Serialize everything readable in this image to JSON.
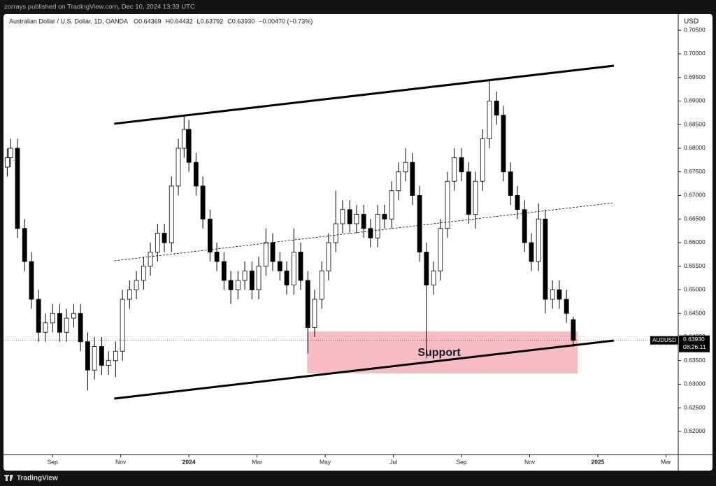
{
  "header": {
    "publisher": "zorrays published on TradingView.com, Dec 10, 2024 13:33 UTC"
  },
  "footer": {
    "brand": "TradingView"
  },
  "chart_data": {
    "type": "candlestick",
    "title": "Australian Dollar / U.S. Dollar, 1D, OANDA",
    "legend_values": [
      "O0.64369",
      "H0.64432",
      "L0.63792",
      "C0.63930",
      "−0.00470 (−0.73%)"
    ],
    "currency": "USD",
    "symbol": "AUDUSD",
    "last_price_label": "0.63930",
    "countdown": "08:26:11",
    "last_price": 0.6393,
    "annotation": "Support",
    "xlim": [
      -1.44,
      18.36
    ],
    "ylim": [
      0.61511,
      0.70844
    ],
    "xticks": [
      {
        "value": 0,
        "label": "Sep"
      },
      {
        "value": 2,
        "label": "Nov"
      },
      {
        "value": 4,
        "label": "2024"
      },
      {
        "value": 6,
        "label": "Mar"
      },
      {
        "value": 8,
        "label": "May"
      },
      {
        "value": 10,
        "label": "Jul"
      },
      {
        "value": 12,
        "label": "Sep"
      },
      {
        "value": 14,
        "label": "Nov"
      },
      {
        "value": 16,
        "label": "2025"
      },
      {
        "value": 18,
        "label": "Mar"
      }
    ],
    "yticks": [
      {
        "value": 0.62,
        "label": "0.62000"
      },
      {
        "value": 0.625,
        "label": "0.62500"
      },
      {
        "value": 0.63,
        "label": "0.63000"
      },
      {
        "value": 0.635,
        "label": "0.63500"
      },
      {
        "value": 0.64,
        "label": "0.64000"
      },
      {
        "value": 0.645,
        "label": "0.64500"
      },
      {
        "value": 0.65,
        "label": "0.65000"
      },
      {
        "value": 0.655,
        "label": "0.65500"
      },
      {
        "value": 0.66,
        "label": "0.66000"
      },
      {
        "value": 0.665,
        "label": "0.66500"
      },
      {
        "value": 0.67,
        "label": "0.67000"
      },
      {
        "value": 0.675,
        "label": "0.67500"
      },
      {
        "value": 0.68,
        "label": "0.68000"
      },
      {
        "value": 0.685,
        "label": "0.68500"
      },
      {
        "value": 0.69,
        "label": "0.69000"
      },
      {
        "value": 0.695,
        "label": "0.69500"
      },
      {
        "value": 0.7,
        "label": "0.70000"
      },
      {
        "value": 0.705,
        "label": "0.70500"
      }
    ],
    "up_color": "#ffffff",
    "down_color": "#000000",
    "wick_color": "#000000",
    "x": [
      -1.33,
      -1.23,
      -1.03,
      -0.82,
      -0.62,
      -0.41,
      -0.21,
      0,
      0.21,
      0.41,
      0.62,
      0.82,
      1.03,
      1.23,
      1.44,
      1.64,
      1.85,
      2.05,
      2.26,
      2.46,
      2.67,
      2.87,
      3.08,
      3.28,
      3.49,
      3.69,
      3.86,
      4.0,
      4.21,
      4.41,
      4.62,
      4.82,
      5.03,
      5.23,
      5.44,
      5.64,
      5.85,
      6.05,
      6.26,
      6.46,
      6.67,
      6.87,
      7.08,
      7.28,
      7.49,
      7.69,
      7.9,
      8.1,
      8.31,
      8.51,
      8.72,
      8.92,
      9.13,
      9.33,
      9.54,
      9.74,
      9.95,
      10.15,
      10.36,
      10.56,
      10.77,
      10.97,
      11.18,
      11.38,
      11.59,
      11.79,
      12.0,
      12.21,
      12.41,
      12.62,
      12.82,
      13.03,
      13.23,
      13.44,
      13.64,
      13.85,
      14.05,
      14.26,
      14.46,
      14.67,
      14.87,
      15.08,
      15.28
    ],
    "candles": [
      [
        0.676,
        0.68,
        0.674,
        0.678
      ],
      [
        0.678,
        0.682,
        0.676,
        0.68
      ],
      [
        0.68,
        0.682,
        0.661,
        0.663
      ],
      [
        0.663,
        0.665,
        0.654,
        0.656
      ],
      [
        0.656,
        0.658,
        0.646,
        0.648
      ],
      [
        0.648,
        0.65,
        0.639,
        0.641
      ],
      [
        0.641,
        0.645,
        0.639,
        0.643
      ],
      [
        0.643,
        0.647,
        0.641,
        0.645
      ],
      [
        0.645,
        0.647,
        0.639,
        0.641
      ],
      [
        0.641,
        0.646,
        0.639,
        0.644
      ],
      [
        0.644,
        0.647,
        0.642,
        0.645
      ],
      [
        0.645,
        0.647,
        0.637,
        0.639
      ],
      [
        0.639,
        0.641,
        0.6287,
        0.633
      ],
      [
        0.633,
        0.64,
        0.631,
        0.638
      ],
      [
        0.638,
        0.64,
        0.632,
        0.634
      ],
      [
        0.634,
        0.637,
        0.632,
        0.635
      ],
      [
        0.635,
        0.639,
        0.6315,
        0.637
      ],
      [
        0.637,
        0.65,
        0.635,
        0.648
      ],
      [
        0.648,
        0.652,
        0.646,
        0.65
      ],
      [
        0.65,
        0.654,
        0.648,
        0.652
      ],
      [
        0.652,
        0.657,
        0.65,
        0.655
      ],
      [
        0.655,
        0.66,
        0.653,
        0.658
      ],
      [
        0.658,
        0.664,
        0.656,
        0.662
      ],
      [
        0.662,
        0.664,
        0.658,
        0.66
      ],
      [
        0.66,
        0.674,
        0.658,
        0.672
      ],
      [
        0.672,
        0.682,
        0.67,
        0.68
      ],
      [
        0.68,
        0.6868,
        0.678,
        0.684
      ],
      [
        0.684,
        0.686,
        0.675,
        0.677
      ],
      [
        0.677,
        0.679,
        0.67,
        0.672
      ],
      [
        0.672,
        0.674,
        0.663,
        0.665
      ],
      [
        0.665,
        0.667,
        0.656,
        0.658
      ],
      [
        0.658,
        0.66,
        0.654,
        0.656
      ],
      [
        0.656,
        0.658,
        0.65,
        0.652
      ],
      [
        0.652,
        0.654,
        0.647,
        0.65
      ],
      [
        0.65,
        0.654,
        0.648,
        0.652
      ],
      [
        0.652,
        0.656,
        0.65,
        0.654
      ],
      [
        0.654,
        0.656,
        0.648,
        0.65
      ],
      [
        0.65,
        0.657,
        0.648,
        0.655
      ],
      [
        0.655,
        0.663,
        0.653,
        0.66
      ],
      [
        0.66,
        0.662,
        0.654,
        0.656
      ],
      [
        0.656,
        0.658,
        0.652,
        0.654
      ],
      [
        0.654,
        0.656,
        0.649,
        0.651
      ],
      [
        0.651,
        0.663,
        0.649,
        0.658
      ],
      [
        0.658,
        0.66,
        0.65,
        0.652
      ],
      [
        0.652,
        0.654,
        0.6365,
        0.642
      ],
      [
        0.642,
        0.65,
        0.64,
        0.648
      ],
      [
        0.648,
        0.656,
        0.646,
        0.654
      ],
      [
        0.654,
        0.662,
        0.652,
        0.66
      ],
      [
        0.66,
        0.671,
        0.658,
        0.664
      ],
      [
        0.664,
        0.669,
        0.662,
        0.667
      ],
      [
        0.667,
        0.669,
        0.662,
        0.664
      ],
      [
        0.664,
        0.668,
        0.662,
        0.666
      ],
      [
        0.666,
        0.668,
        0.661,
        0.663
      ],
      [
        0.663,
        0.665,
        0.659,
        0.661
      ],
      [
        0.661,
        0.668,
        0.659,
        0.666
      ],
      [
        0.666,
        0.668,
        0.663,
        0.665
      ],
      [
        0.665,
        0.673,
        0.663,
        0.671
      ],
      [
        0.671,
        0.677,
        0.669,
        0.675
      ],
      [
        0.675,
        0.68,
        0.673,
        0.677
      ],
      [
        0.677,
        0.679,
        0.668,
        0.67
      ],
      [
        0.67,
        0.672,
        0.656,
        0.658
      ],
      [
        0.658,
        0.66,
        0.6355,
        0.651
      ],
      [
        0.651,
        0.656,
        0.649,
        0.654
      ],
      [
        0.654,
        0.665,
        0.652,
        0.663
      ],
      [
        0.663,
        0.675,
        0.661,
        0.673
      ],
      [
        0.673,
        0.68,
        0.671,
        0.678
      ],
      [
        0.678,
        0.68,
        0.673,
        0.675
      ],
      [
        0.675,
        0.677,
        0.664,
        0.666
      ],
      [
        0.666,
        0.675,
        0.663,
        0.673
      ],
      [
        0.673,
        0.684,
        0.671,
        0.682
      ],
      [
        0.682,
        0.6942,
        0.68,
        0.69
      ],
      [
        0.69,
        0.692,
        0.685,
        0.687
      ],
      [
        0.687,
        0.689,
        0.673,
        0.675
      ],
      [
        0.675,
        0.677,
        0.668,
        0.67
      ],
      [
        0.67,
        0.672,
        0.665,
        0.667
      ],
      [
        0.667,
        0.669,
        0.658,
        0.66
      ],
      [
        0.66,
        0.662,
        0.654,
        0.656
      ],
      [
        0.656,
        0.6683,
        0.654,
        0.665
      ],
      [
        0.665,
        0.667,
        0.645,
        0.648
      ],
      [
        0.648,
        0.652,
        0.646,
        0.65
      ],
      [
        0.65,
        0.652,
        0.646,
        0.648
      ],
      [
        0.648,
        0.65,
        0.643,
        0.645
      ],
      [
        0.64369,
        0.64432,
        0.63792,
        0.6393
      ]
    ],
    "trendlines": [
      {
        "x": [
          1.81,
          16.47
        ],
        "y": [
          0.68519,
          0.69748
        ],
        "style": "solid"
      },
      {
        "x": [
          1.81,
          16.47
        ],
        "y": [
          0.62696,
          0.63926
        ],
        "style": "solid"
      },
      {
        "x": [
          1.81,
          16.47
        ],
        "y": [
          0.65615,
          0.66844
        ],
        "style": "dashed"
      }
    ],
    "zone": {
      "x": [
        7.47,
        15.41
      ],
      "y": [
        0.6323,
        0.64119
      ],
      "color": "#f8bcc3"
    }
  }
}
